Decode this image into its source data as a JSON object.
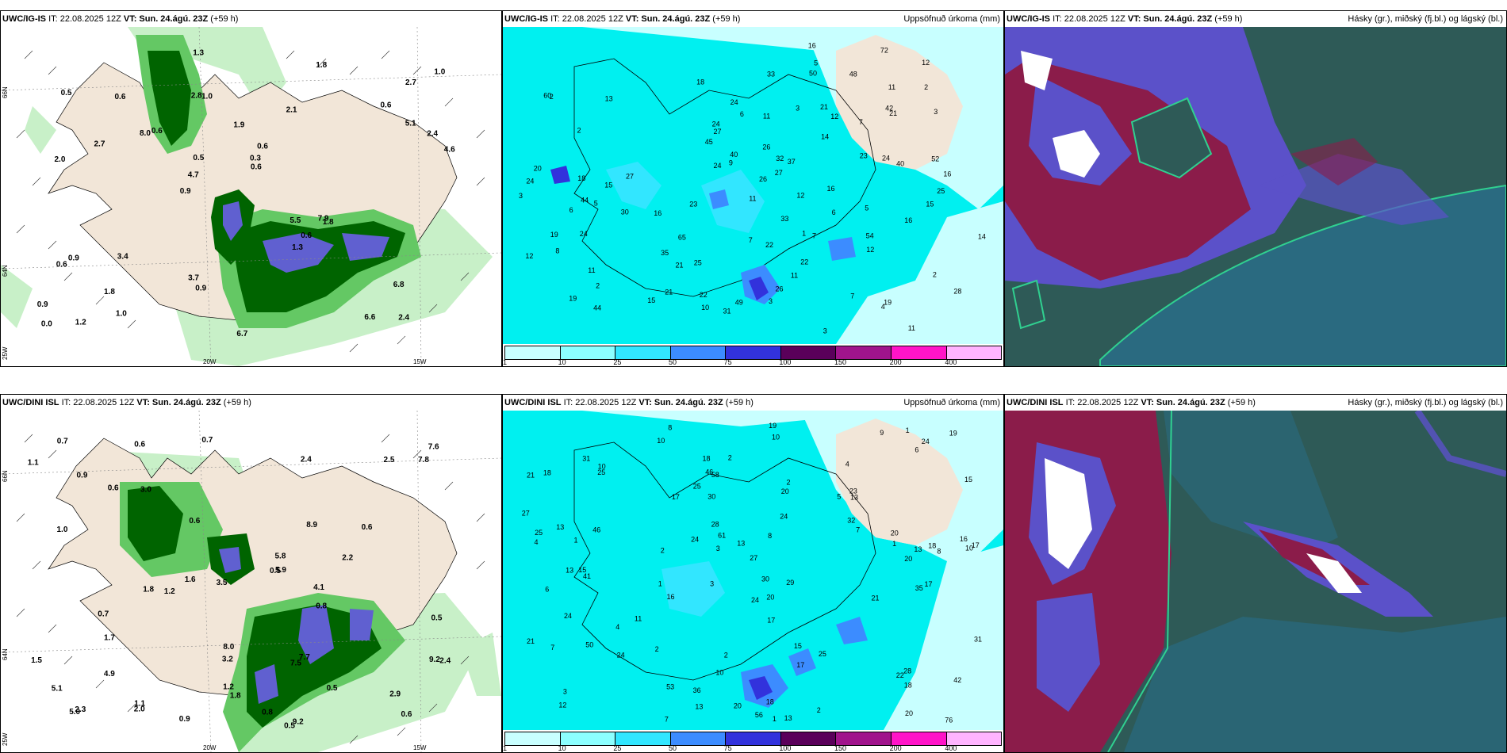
{
  "rows": [
    {
      "model": "UWC/IG-IS",
      "init": "IT: 22.08.2025 12Z",
      "vt_label": "VT:",
      "vt": "Sun. 24.ágú. 23Z",
      "lead": "(+59 h)",
      "wind_labels": [
        "2.4",
        "2.0",
        "2.7",
        "0.9",
        "2.1",
        "1.2",
        "2.8",
        "1.9",
        "0.9",
        "0.6",
        "0.9",
        "1.8",
        "1.0",
        "0.6",
        "1.8",
        "0.5",
        "1.3",
        "4.6",
        "5.5",
        "5.1",
        "4.7",
        "3.7",
        "0.5",
        "0.6",
        "1.8",
        "3.4",
        "6.6",
        "6.8",
        "7.9",
        "6.7",
        "8.0",
        "2.7",
        "1.3",
        "1.0",
        "2.4",
        "0.3",
        "0.0",
        "0.9",
        "0.6",
        "0.6",
        "0.6",
        "1.0",
        "0.6"
      ],
      "precip_labels": [
        "11",
        "5",
        "1",
        "2",
        "2",
        "2",
        "2",
        "16",
        "7",
        "6",
        "12",
        "4",
        "21",
        "18",
        "12",
        "8",
        "5",
        "26",
        "20",
        "19",
        "12",
        "11",
        "24",
        "14",
        "25",
        "18",
        "30",
        "11",
        "9",
        "2",
        "7",
        "6",
        "35",
        "21",
        "24",
        "16",
        "15",
        "7",
        "11",
        "3",
        "65",
        "22",
        "21",
        "16",
        "23",
        "15",
        "3",
        "5",
        "3",
        "7",
        "6",
        "52",
        "54",
        "40",
        "45",
        "3",
        "10",
        "40",
        "33",
        "23",
        "22",
        "42",
        "13",
        "33",
        "12",
        "19",
        "27",
        "27",
        "48",
        "21",
        "12",
        "49",
        "11",
        "28",
        "14",
        "16",
        "24",
        "22",
        "44",
        "50",
        "16",
        "32",
        "19",
        "44",
        "26",
        "15",
        "27",
        "25",
        "24",
        "72",
        "31",
        "26",
        "37",
        "60",
        "24",
        "11",
        "3",
        "24"
      ],
      "cloud_title": "Hásky (gr.), miðský (fj.bl.) og lágský (bl.)",
      "precip_title": "Uppsöfnuð úrkoma (mm)"
    },
    {
      "model": "UWC/DINI ISL",
      "init": "IT: 22.08.2025 12Z",
      "vt_label": "VT:",
      "vt": "Sun. 24.ágú. 23Z",
      "lead": "(+59 h)",
      "wind_labels": [
        "0.9",
        "0.5",
        "1.1",
        "0.5",
        "0.6",
        "0.9",
        "1.8",
        "0.6",
        "0.7",
        "0.6",
        "2.5",
        "1.8",
        "1.6",
        "3.2",
        "2.4",
        "0.5",
        "1.0",
        "2.0",
        "1.2",
        "1.1",
        "7.5",
        "7.6",
        "5.8",
        "5.0",
        "0.6",
        "0.7",
        "1.5",
        "1.7",
        "0.7",
        "0.8",
        "3.5",
        "9.2",
        "8.0",
        "7.8",
        "4.9",
        "4.1",
        "9.2",
        "5.1",
        "8.9",
        "2.9",
        "5.9",
        "2.2",
        "2.4",
        "2.3",
        "3.0",
        "7.7",
        "0.5",
        "0.8",
        "0.6",
        "1.2"
      ],
      "precip_labels": [
        "8",
        "4",
        "10",
        "3",
        "20",
        "15",
        "18",
        "5",
        "6",
        "20",
        "27",
        "12",
        "10",
        "1",
        "1",
        "13",
        "10",
        "9",
        "7",
        "4",
        "1",
        "13",
        "17",
        "18",
        "21",
        "13",
        "3",
        "1",
        "28",
        "7",
        "22",
        "2",
        "50",
        "24",
        "25",
        "31",
        "20",
        "36",
        "19",
        "2",
        "3",
        "7",
        "2",
        "31",
        "20",
        "13",
        "18",
        "23",
        "27",
        "30",
        "46",
        "20",
        "8",
        "6",
        "10",
        "24",
        "28",
        "13",
        "24",
        "30",
        "42",
        "35",
        "10",
        "2",
        "24",
        "25",
        "13",
        "41",
        "17",
        "15",
        "24",
        "18",
        "16",
        "32",
        "24",
        "46",
        "53",
        "25",
        "8",
        "11",
        "19",
        "18",
        "20",
        "21",
        "25",
        "58",
        "76",
        "21",
        "16",
        "17",
        "4",
        "17",
        "13",
        "56",
        "61",
        "15",
        "17",
        "2",
        "29",
        "2",
        "1"
      ],
      "cloud_title": "Hásky (gr.), miðský (fj.bl.) og lágský (bl.)",
      "precip_title": "Uppsöfnuð úrkoma (mm)"
    }
  ],
  "colorbar": {
    "labels": [
      "1",
      "10",
      "25",
      "50",
      "75",
      "100",
      "150",
      "200",
      "400"
    ],
    "colors": [
      "#c8ffff",
      "#8cffff",
      "#32e6ff",
      "#3c8cff",
      "#3232dc",
      "#5a005a",
      "#a0148c",
      "#ff14c8",
      "#ffb4ff"
    ]
  },
  "axes": {
    "lat_66": "66N",
    "lat_64": "64N",
    "lon_20": "20W",
    "lon_15": "15W",
    "lon_25": "25W"
  },
  "colors": {
    "land": "#f2e6d8",
    "wind_light": "#c8f0c8",
    "wind_mid": "#64c864",
    "wind_dark": "#006400",
    "wind_purple": "#6060d0",
    "precip_base": "#00f0f0",
    "cloud_high": "#2e5a57",
    "cloud_mid": "#5b51c9",
    "cloud_low": "#8b1c4a"
  }
}
